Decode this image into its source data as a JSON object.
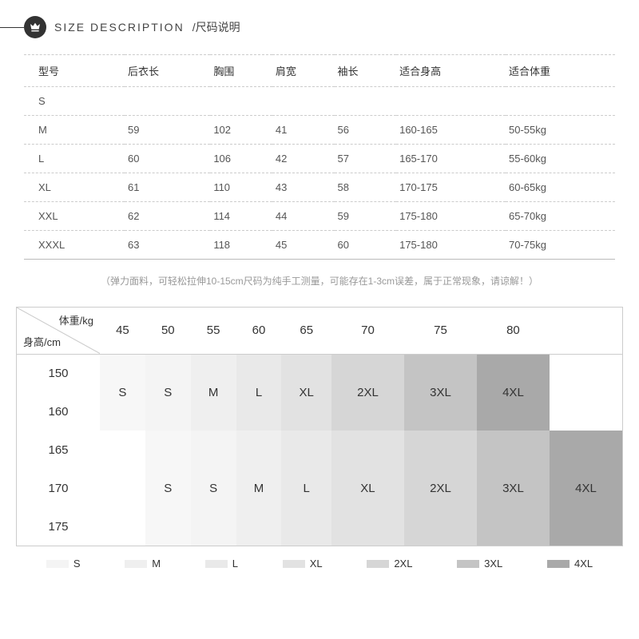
{
  "header": {
    "title_en": "SIZE  DESCRIPTION",
    "title_cn": "/尺码说明"
  },
  "size_table": {
    "columns": [
      "型号",
      "后衣长",
      "胸围",
      "肩宽",
      "袖长",
      "适合身高",
      "适合体重"
    ],
    "rows": [
      [
        "S",
        "",
        "",
        "",
        "",
        "",
        ""
      ],
      [
        "M",
        "59",
        "102",
        "41",
        "56",
        "160-165",
        "50-55kg"
      ],
      [
        "L",
        "60",
        "106",
        "42",
        "57",
        "165-170",
        "55-60kg"
      ],
      [
        "XL",
        "61",
        "110",
        "43",
        "58",
        "170-175",
        "60-65kg"
      ],
      [
        "XXL",
        "62",
        "114",
        "44",
        "59",
        "175-180",
        "65-70kg"
      ],
      [
        "XXXL",
        "63",
        "118",
        "45",
        "60",
        "175-180",
        "70-75kg"
      ]
    ]
  },
  "note_text": "（弹力面料，可轻松拉伸10-15cm尺码为纯手工测量，可能存在1-3cm误差，属于正常现象，请谅解！）",
  "matrix": {
    "corner_top": "体重/kg",
    "corner_bottom": "身高/cm",
    "weight_headers": [
      "45",
      "50",
      "55",
      "60",
      "65",
      "70",
      "75",
      "80"
    ],
    "height_headers": [
      "150",
      "160",
      "165",
      "170",
      "175"
    ],
    "block_top": {
      "labels": [
        "S",
        "S",
        "M",
        "L",
        "XL",
        "2XL",
        "3XL",
        "4XL"
      ],
      "colors": [
        "#f7f7f7",
        "#f4f4f4",
        "#efefef",
        "#e9e9e9",
        "#e2e2e2",
        "#d6d6d6",
        "#c4c4c4",
        "#a9a9a9"
      ]
    },
    "block_bottom": {
      "labels": [
        "S",
        "S",
        "M",
        "L",
        "XL",
        "2XL",
        "3XL",
        "4XL"
      ],
      "colors": [
        "#f7f7f7",
        "#f4f4f4",
        "#efefef",
        "#e9e9e9",
        "#e2e2e2",
        "#d6d6d6",
        "#c4c4c4",
        "#a9a9a9"
      ]
    }
  },
  "legend": {
    "items": [
      {
        "label": "S",
        "color": "#f4f4f4"
      },
      {
        "label": "M",
        "color": "#efefef"
      },
      {
        "label": "L",
        "color": "#e9e9e9"
      },
      {
        "label": "XL",
        "color": "#e2e2e2"
      },
      {
        "label": "2XL",
        "color": "#d6d6d6"
      },
      {
        "label": "3XL",
        "color": "#c4c4c4"
      },
      {
        "label": "4XL",
        "color": "#a9a9a9"
      }
    ]
  },
  "colors": {
    "text_primary": "#333333",
    "text_muted": "#999999",
    "border": "#cccccc",
    "background": "#ffffff"
  }
}
